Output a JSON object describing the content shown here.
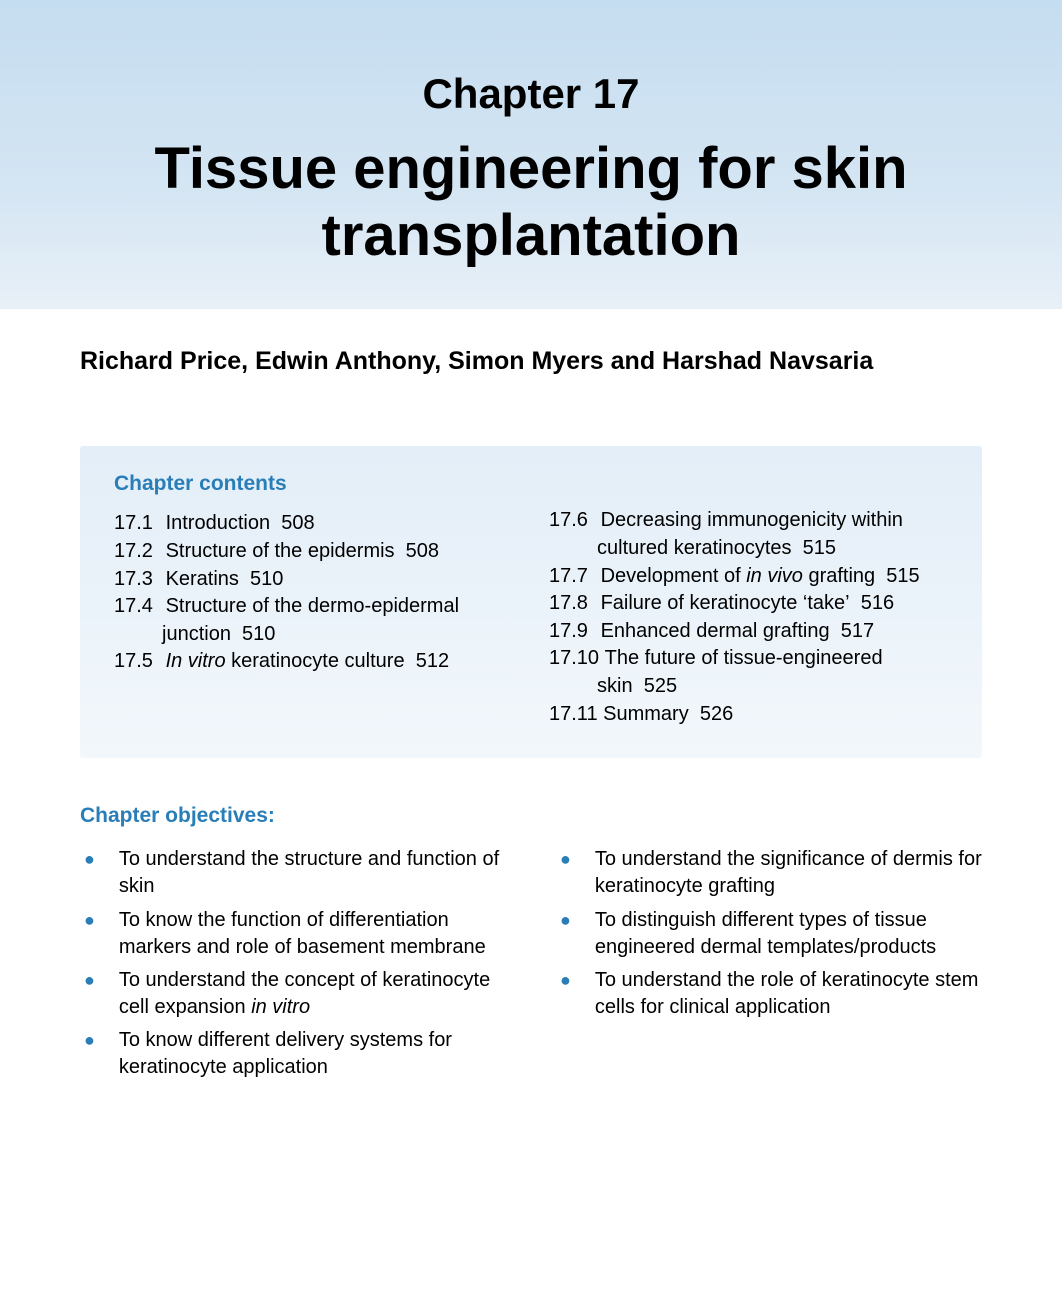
{
  "colors": {
    "accent": "#2a7eb8",
    "title_bg_top": "#c5ddf0",
    "title_bg_bottom": "#e8f0f7",
    "contents_bg_top": "#e3eef8",
    "contents_bg_bottom": "#f2f7fb",
    "text": "#000000",
    "page_bg": "#ffffff"
  },
  "typography": {
    "chapter_num_size": 42,
    "chapter_title_size": 58,
    "authors_size": 25,
    "heading_size": 21,
    "body_size": 20,
    "font_family": "Optima / Candara style humanist sans"
  },
  "chapter": {
    "number_label": "Chapter 17",
    "title": "Tissue engineering for skin transplantation",
    "authors": "Richard Price, Edwin Anthony, Simon Myers and Harshad Navsaria"
  },
  "contents": {
    "heading": "Chapter contents",
    "left": [
      {
        "num": "17.1",
        "text": "Introduction",
        "page": "508"
      },
      {
        "num": "17.2",
        "text": "Structure of the epidermis",
        "page": "508"
      },
      {
        "num": "17.3",
        "text": "Keratins",
        "page": "510"
      },
      {
        "num": "17.4",
        "text": "Structure of the dermo-epidermal junction",
        "page": "510"
      },
      {
        "num": "17.5",
        "text_pre": "",
        "italic": "In vitro",
        "text_post": " keratinocyte culture",
        "page": "512"
      }
    ],
    "right": [
      {
        "num": "17.6",
        "text": "Decreasing immunogenicity within cultured keratinocytes",
        "page": "515"
      },
      {
        "num": "17.7",
        "text_pre": "Development of ",
        "italic": "in vivo",
        "text_post": " grafting",
        "page": "515"
      },
      {
        "num": "17.8",
        "text": "Failure of keratinocyte ‘take’",
        "page": "516"
      },
      {
        "num": "17.9",
        "text": "Enhanced dermal grafting",
        "page": "517"
      },
      {
        "num": "17.10",
        "text": "The future of tissue-engineered skin",
        "page": "525"
      },
      {
        "num": "17.11",
        "text": "Summary",
        "page": "526"
      }
    ]
  },
  "objectives": {
    "heading": "Chapter objectives:",
    "left": [
      "To understand the structure and function of skin",
      "To know the function of differentiation markers and role of basement membrane",
      {
        "pre": "To understand the concept of keratinocyte cell expansion ",
        "italic": "in vitro",
        "post": ""
      },
      "To know different delivery systems for keratinocyte application"
    ],
    "right": [
      "To understand the significance of dermis for keratinocyte grafting",
      "To distinguish different types of tissue engineered dermal templates/products",
      "To understand the role of keratinocyte stem cells for clinical application"
    ]
  }
}
